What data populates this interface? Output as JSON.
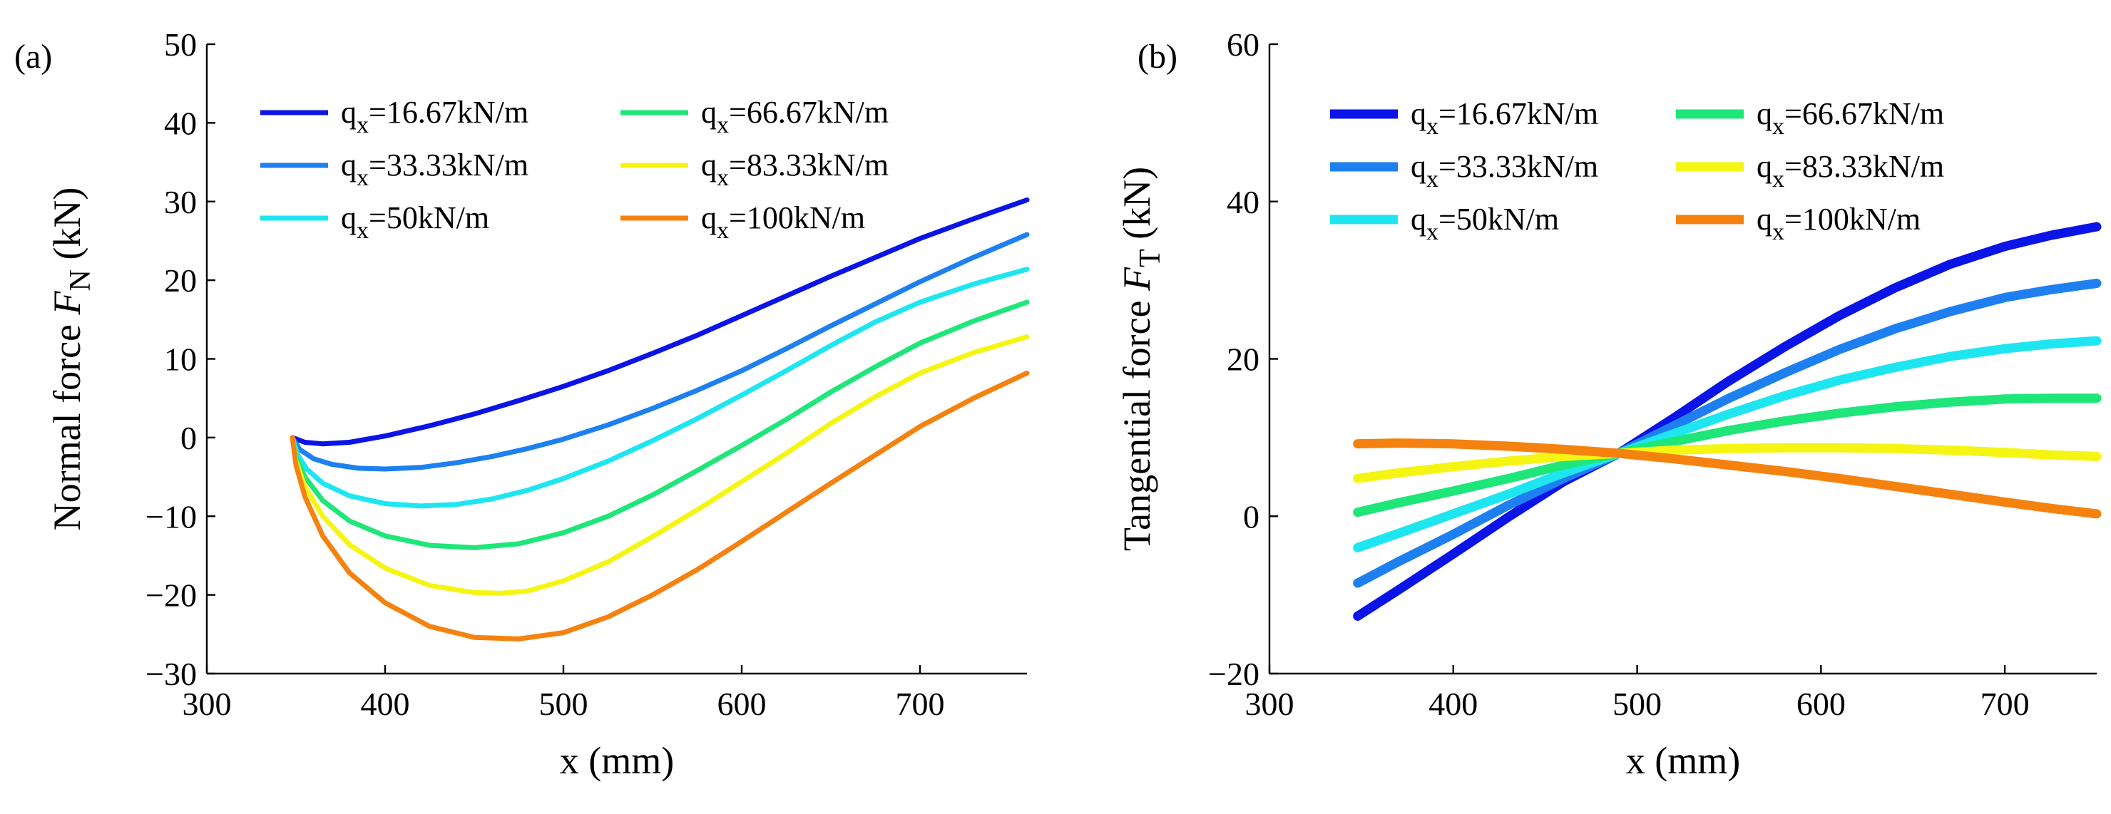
{
  "chart_data": [
    {
      "type": "line",
      "panel_label": "(a)",
      "xlabel": "x (mm)",
      "ylabel": {
        "prefix": "Normal force ",
        "var": "F",
        "sub": "N",
        "unit": " (kN)"
      },
      "xlim": [
        300,
        760
      ],
      "ylim": [
        -30,
        50
      ],
      "xticks": [
        300,
        400,
        500,
        600,
        700
      ],
      "yticks": [
        -30,
        -20,
        -10,
        0,
        10,
        20,
        30,
        40,
        50
      ],
      "tick_labels_x": [
        "300",
        "400",
        "500",
        "600",
        "700"
      ],
      "tick_labels_y": [
        "−30",
        "−20",
        "−10",
        "0",
        "10",
        "20",
        "30",
        "40",
        "50"
      ],
      "legend_position": "top-left",
      "series": [
        {
          "name": "16.67",
          "label_prefix": "q",
          "label_sub": "x",
          "label_value": "=16.67kN/m",
          "color": "#0a14e6",
          "x": [
            348,
            355,
            365,
            380,
            400,
            425,
            450,
            475,
            500,
            525,
            550,
            575,
            600,
            625,
            650,
            675,
            700,
            730,
            760
          ],
          "y": [
            0,
            -0.6,
            -0.8,
            -0.6,
            0.2,
            1.5,
            3.0,
            4.7,
            6.5,
            8.5,
            10.7,
            13.0,
            15.5,
            18.0,
            20.5,
            22.9,
            25.3,
            27.8,
            30.2
          ]
        },
        {
          "name": "33.33",
          "label_prefix": "q",
          "label_sub": "x",
          "label_value": "=33.33kN/m",
          "color": "#1e80f0",
          "x": [
            348,
            352,
            360,
            370,
            385,
            400,
            420,
            440,
            460,
            480,
            500,
            525,
            550,
            575,
            600,
            625,
            650,
            675,
            700,
            730,
            760
          ],
          "y": [
            0,
            -1.5,
            -2.7,
            -3.4,
            -3.9,
            -4.0,
            -3.8,
            -3.2,
            -2.4,
            -1.4,
            -0.2,
            1.6,
            3.7,
            6.0,
            8.5,
            11.3,
            14.2,
            17.0,
            19.8,
            22.9,
            25.8
          ]
        },
        {
          "name": "50",
          "label_prefix": "q",
          "label_sub": "x",
          "label_value": "=50kN/m",
          "color": "#1ee6f0",
          "x": [
            348,
            351,
            356,
            365,
            380,
            400,
            420,
            440,
            460,
            480,
            500,
            525,
            550,
            575,
            600,
            625,
            650,
            675,
            700,
            730,
            760
          ],
          "y": [
            0,
            -2.2,
            -4.0,
            -5.8,
            -7.4,
            -8.4,
            -8.7,
            -8.5,
            -7.8,
            -6.7,
            -5.2,
            -3.0,
            -0.4,
            2.4,
            5.4,
            8.5,
            11.7,
            14.7,
            17.2,
            19.5,
            21.4
          ]
        },
        {
          "name": "66.67",
          "label_prefix": "q",
          "label_sub": "x",
          "label_value": "=66.67kN/m",
          "color": "#1ee678",
          "x": [
            348,
            350,
            355,
            365,
            380,
            400,
            425,
            450,
            475,
            500,
            525,
            550,
            575,
            600,
            625,
            650,
            675,
            700,
            730,
            760
          ],
          "y": [
            0,
            -2.5,
            -5.0,
            -8.0,
            -10.6,
            -12.5,
            -13.7,
            -14.0,
            -13.5,
            -12.1,
            -10.0,
            -7.3,
            -4.2,
            -1.0,
            2.3,
            5.8,
            9.0,
            12.0,
            14.8,
            17.2
          ]
        },
        {
          "name": "83.33",
          "label_prefix": "q",
          "label_sub": "x",
          "label_value": "=83.33kN/m",
          "color": "#f5f514",
          "x": [
            348,
            350,
            355,
            365,
            380,
            400,
            425,
            450,
            465,
            480,
            500,
            525,
            550,
            575,
            600,
            625,
            650,
            675,
            700,
            730,
            760
          ],
          "y": [
            0,
            -3.0,
            -6.2,
            -10.0,
            -13.6,
            -16.6,
            -18.8,
            -19.7,
            -19.8,
            -19.5,
            -18.2,
            -15.8,
            -12.6,
            -9.2,
            -5.6,
            -2.0,
            1.8,
            5.2,
            8.2,
            10.8,
            12.8
          ]
        },
        {
          "name": "100",
          "label_prefix": "q",
          "label_sub": "x",
          "label_value": "=100kN/m",
          "color": "#f5820f",
          "x": [
            348,
            350,
            355,
            365,
            380,
            400,
            425,
            450,
            475,
            500,
            525,
            550,
            575,
            600,
            625,
            650,
            675,
            700,
            730,
            760
          ],
          "y": [
            0,
            -3.5,
            -7.5,
            -12.5,
            -17.2,
            -21.0,
            -24.0,
            -25.4,
            -25.6,
            -24.8,
            -22.8,
            -20.0,
            -16.8,
            -13.2,
            -9.5,
            -5.8,
            -2.2,
            1.4,
            5.0,
            8.2
          ]
        }
      ]
    },
    {
      "type": "line",
      "panel_label": "(b)",
      "xlabel": "x (mm)",
      "ylabel": {
        "prefix": "Tangential force ",
        "var": "F",
        "sub": "T",
        "unit": " (kN)"
      },
      "xlim": [
        300,
        750
      ],
      "ylim": [
        -20,
        60
      ],
      "xticks": [
        300,
        400,
        500,
        600,
        700
      ],
      "yticks": [
        -20,
        0,
        20,
        40,
        60
      ],
      "tick_labels_x": [
        "300",
        "400",
        "500",
        "600",
        "700"
      ],
      "tick_labels_y": [
        "−20",
        "0",
        "20",
        "40",
        "60"
      ],
      "legend_position": "top-left",
      "series": [
        {
          "name": "16.67",
          "label_prefix": "q",
          "label_sub": "x",
          "label_value": "=16.67kN/m",
          "color": "#0a14e6",
          "x": [
            348,
            370,
            400,
            430,
            460,
            490,
            520,
            550,
            580,
            610,
            640,
            670,
            700,
            725,
            750
          ],
          "y": [
            -12.7,
            -9.4,
            -4.8,
            -0.1,
            4.4,
            8.0,
            12.5,
            17.2,
            21.5,
            25.5,
            29.0,
            32.0,
            34.3,
            35.7,
            36.8
          ]
        },
        {
          "name": "33.33",
          "label_prefix": "q",
          "label_sub": "x",
          "label_value": "=33.33kN/m",
          "color": "#1e80f0",
          "x": [
            348,
            370,
            400,
            430,
            460,
            490,
            520,
            550,
            580,
            610,
            640,
            670,
            700,
            725,
            750
          ],
          "y": [
            -8.5,
            -5.8,
            -2.3,
            1.4,
            4.8,
            8.0,
            11.5,
            15.0,
            18.2,
            21.2,
            23.8,
            26.0,
            27.8,
            28.8,
            29.6
          ]
        },
        {
          "name": "50",
          "label_prefix": "q",
          "label_sub": "x",
          "label_value": "=50kN/m",
          "color": "#1ee6f0",
          "x": [
            348,
            370,
            400,
            430,
            460,
            490,
            520,
            550,
            580,
            610,
            640,
            670,
            700,
            725,
            750
          ],
          "y": [
            -4.0,
            -2.2,
            0.3,
            2.8,
            5.5,
            8.0,
            10.5,
            13.0,
            15.3,
            17.3,
            18.9,
            20.3,
            21.3,
            21.9,
            22.3
          ]
        },
        {
          "name": "66.67",
          "label_prefix": "q",
          "label_sub": "x",
          "label_value": "=66.67kN/m",
          "color": "#1ee678",
          "x": [
            348,
            370,
            400,
            430,
            460,
            490,
            520,
            550,
            580,
            610,
            640,
            670,
            700,
            725,
            750
          ],
          "y": [
            0.5,
            1.7,
            3.2,
            4.8,
            6.5,
            8.0,
            9.5,
            10.9,
            12.1,
            13.1,
            13.9,
            14.5,
            14.9,
            15.0,
            15.0
          ]
        },
        {
          "name": "83.33",
          "label_prefix": "q",
          "label_sub": "x",
          "label_value": "=83.33kN/m",
          "color": "#f5f514",
          "x": [
            348,
            370,
            400,
            430,
            460,
            490,
            520,
            550,
            580,
            610,
            640,
            670,
            700,
            725,
            750
          ],
          "y": [
            4.8,
            5.5,
            6.3,
            7.0,
            7.6,
            8.0,
            8.4,
            8.6,
            8.7,
            8.7,
            8.6,
            8.4,
            8.1,
            7.8,
            7.6
          ]
        },
        {
          "name": "100",
          "label_prefix": "q",
          "label_sub": "x",
          "label_value": "=100kN/m",
          "color": "#f5820f",
          "x": [
            348,
            370,
            400,
            430,
            460,
            490,
            520,
            550,
            580,
            610,
            640,
            670,
            700,
            725,
            750
          ],
          "y": [
            9.2,
            9.3,
            9.2,
            8.9,
            8.5,
            8.0,
            7.3,
            6.5,
            5.7,
            4.8,
            3.8,
            2.8,
            1.8,
            1.0,
            0.3
          ]
        }
      ]
    }
  ]
}
